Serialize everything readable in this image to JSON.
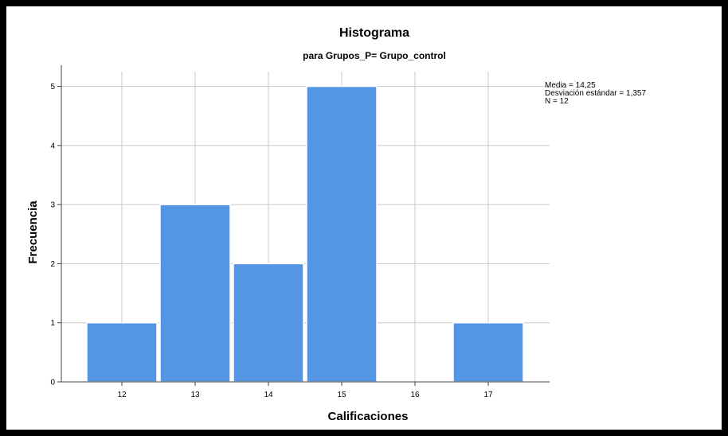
{
  "chart_data": {
    "type": "bar",
    "title": "Histograma",
    "subtitle": "para Grupos_P= Grupo_control",
    "xlabel": "Calificaciones",
    "ylabel": "Frecuencia",
    "categories": [
      "12",
      "13",
      "14",
      "15",
      "16",
      "17"
    ],
    "values": [
      1,
      3,
      2,
      5,
      0,
      1
    ],
    "x_ticks": [
      "12",
      "13",
      "14",
      "15",
      "16",
      "17"
    ],
    "y_ticks": [
      "0",
      "1",
      "2",
      "3",
      "4",
      "5"
    ],
    "ylim": [
      0,
      5.25
    ],
    "grid": true,
    "bar_color": "#5496e3",
    "stats": {
      "media": "Media = 14,25",
      "desviacion": "Desviación estándar = 1,357",
      "n": "N = 12"
    }
  }
}
